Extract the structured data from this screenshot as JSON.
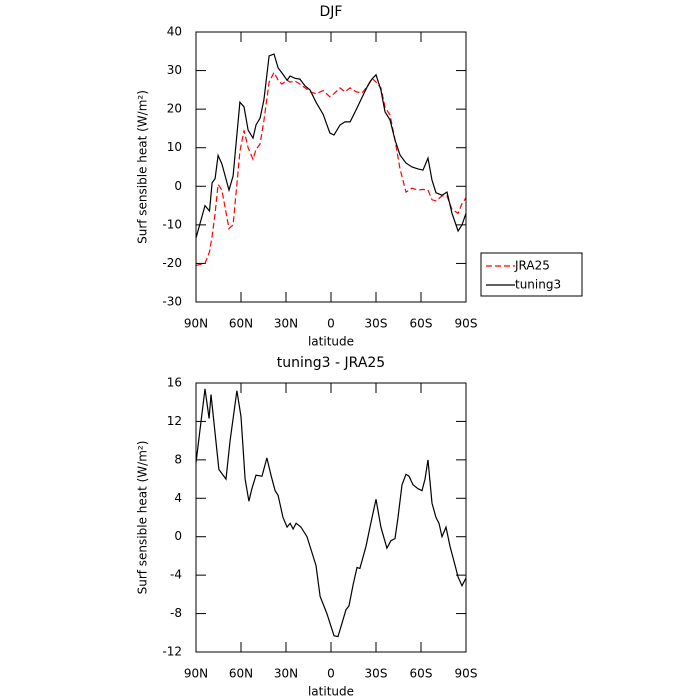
{
  "chart_data": [
    {
      "type": "line",
      "title": "DJF",
      "xlabel": "latitude",
      "ylabel": "Surf sensible heat (W/m²)",
      "x": [
        90,
        84,
        81,
        79.3,
        77.3,
        75.3,
        72.7,
        68,
        65.3,
        60.7,
        58,
        55.3,
        52,
        50,
        47.3,
        44.7,
        41.3,
        38,
        35.3,
        32.7,
        29.3,
        27.3,
        24,
        20.7,
        17.3,
        14,
        10,
        5.3,
        0.7,
        -2,
        -6,
        -9.3,
        -12.7,
        -16.7,
        -20.7,
        -24,
        -27.3,
        -30,
        -33.3,
        -36,
        -39.3,
        -42.7,
        -46,
        -50,
        -54,
        -58,
        -61.3,
        -64.7,
        -67.3,
        -70,
        -74,
        -77.3,
        -80.7,
        -84.7,
        -87.3,
        -90
      ],
      "series": [
        {
          "name": "JRA25",
          "color": "#ff0000",
          "dashed": true,
          "values": [
            -20.5,
            -20,
            -17,
            -13,
            -7,
            0.5,
            -1,
            -11,
            -10,
            9,
            14.5,
            10,
            7,
            9.5,
            11,
            17,
            27,
            29.5,
            27.5,
            26.5,
            27.5,
            27,
            27.3,
            26.5,
            25.5,
            24.5,
            24,
            24.8,
            23.2,
            24,
            25.5,
            24.5,
            25.5,
            24.5,
            24.2,
            25.8,
            28,
            27,
            25.5,
            20.5,
            18.5,
            12,
            4.5,
            -1.5,
            -0.5,
            -1,
            -0.8,
            -1,
            -3.5,
            -3.8,
            -2.5,
            -2.5,
            -6,
            -7,
            -4.5,
            -3
          ]
        },
        {
          "name": "tuning3",
          "color": "#000000",
          "dashed": false,
          "values": [
            -13.4,
            -5,
            -6.4,
            0.9,
            2,
            8,
            5.8,
            -1,
            2.7,
            21.8,
            20.6,
            14.6,
            12.5,
            15.9,
            17.7,
            22.4,
            33.8,
            34.3,
            30.7,
            29.4,
            27.5,
            28.6,
            28,
            27.8,
            26,
            25,
            21.8,
            18.7,
            13.8,
            13.3,
            15.9,
            16.7,
            16.7,
            19.8,
            23.1,
            25.7,
            27.8,
            28.9,
            25,
            19.3,
            17.2,
            12,
            8.1,
            6,
            5,
            4.5,
            4.2,
            7.3,
            1.6,
            -1.7,
            -2.3,
            -1.5,
            -7,
            -11.6,
            -10,
            -7
          ]
        }
      ],
      "xlim": [
        90,
        -90
      ],
      "xticks": [
        {
          "value": 90,
          "label": "90N"
        },
        {
          "value": 60,
          "label": "60N"
        },
        {
          "value": 30,
          "label": "30N"
        },
        0,
        {
          "value": -30,
          "label": "30S"
        },
        {
          "value": -60,
          "label": "60S"
        },
        {
          "value": -90,
          "label": "90S"
        }
      ],
      "ylim": [
        -30,
        40
      ],
      "yticks": [
        -30,
        -20,
        -10,
        0,
        10,
        20,
        30,
        40
      ],
      "legend": "outside-right"
    },
    {
      "type": "line",
      "title": "tuning3 - JRA25",
      "xlabel": "latitude",
      "ylabel": "Surf sensible heat (W/m²)",
      "x": [
        90,
        84,
        81.3,
        80,
        74.7,
        70,
        67.3,
        62.7,
        60,
        57.3,
        54.7,
        52.7,
        50,
        46,
        42.7,
        40,
        37.3,
        35.3,
        32,
        29.3,
        27.3,
        25.3,
        23.3,
        20,
        16,
        10,
        7.3,
        2.7,
        -2,
        -4.7,
        -7.3,
        -10,
        -12,
        -14.7,
        -17.3,
        -19.3,
        -23.3,
        -26,
        -30,
        -33.3,
        -37.3,
        -40,
        -42.7,
        -44.7,
        -47.3,
        -50,
        -52,
        -54.7,
        -58,
        -60.7,
        -62.7,
        -64.7,
        -67.3,
        -70,
        -72,
        -74,
        -76.7,
        -79.3,
        -82.7,
        -84.7,
        -87.3,
        -90
      ],
      "series": [
        {
          "color": "#000000",
          "dashed": false,
          "values": [
            7.7,
            15.4,
            12.3,
            14.8,
            7,
            6,
            10,
            15.2,
            12.5,
            6,
            3.7,
            5,
            6.4,
            6.3,
            8.2,
            6.4,
            4.8,
            4.3,
            2,
            1,
            1.4,
            0.8,
            1.4,
            1,
            0,
            -3,
            -6.2,
            -8,
            -10.3,
            -10.4,
            -9,
            -7.6,
            -7.2,
            -5,
            -3.2,
            -3.3,
            -1,
            1,
            3.9,
            1,
            -1.2,
            -0.4,
            -0.2,
            2,
            5.4,
            6.5,
            6.3,
            5.4,
            5,
            4.8,
            6,
            8,
            3.5,
            2,
            1.4,
            0,
            1,
            -1,
            -3,
            -4.2,
            -5.1,
            -4.3
          ]
        }
      ],
      "xlim": [
        90,
        -90
      ],
      "xticks": [
        {
          "value": 90,
          "label": "90N"
        },
        {
          "value": 60,
          "label": "60N"
        },
        {
          "value": 30,
          "label": "30N"
        },
        0,
        {
          "value": -30,
          "label": "30S"
        },
        {
          "value": -60,
          "label": "60S"
        },
        {
          "value": -90,
          "label": "90S"
        }
      ],
      "ylim": [
        -12,
        16
      ],
      "yticks": [
        -12,
        -8,
        -4,
        0,
        4,
        8,
        12,
        16
      ]
    }
  ]
}
